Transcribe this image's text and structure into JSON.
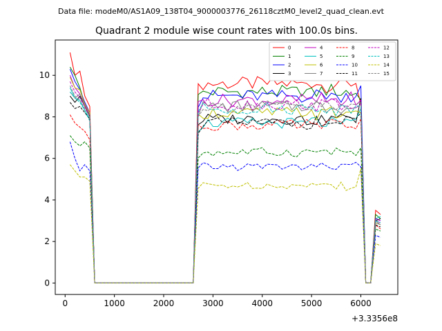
{
  "chart_data": {
    "type": "line",
    "suptitle": "Data file: modeM0/AS1A09_138T04_9000003776_26118cztM0_level2_quad_clean.evt",
    "title": "Quadrant 2 module wise count rates with 100.0s bins.",
    "xlabel": "",
    "ylabel": "",
    "x_offset_label": "+3.3356e8",
    "xlim": [
      -200,
      6750
    ],
    "ylim": [
      -0.55,
      11.7
    ],
    "x_ticks": [
      0,
      1000,
      2000,
      3000,
      4000,
      5000,
      6000
    ],
    "y_ticks": [
      0,
      2,
      4,
      6,
      8,
      10
    ],
    "grid": false,
    "legend": {
      "position": "top-right",
      "columns": 4
    },
    "series": [
      {
        "name": "0",
        "color": "#ff0000",
        "dash": "solid",
        "early": [
          11.1,
          10.0,
          10.2,
          9.0,
          8.5
        ],
        "mid": 9.6,
        "late": [
          8.6,
          0,
          0,
          3.5,
          3.3
        ]
      },
      {
        "name": "1",
        "color": "#008000",
        "dash": "solid",
        "early": [
          10.4,
          10.0,
          9.4,
          8.6,
          8.0
        ],
        "mid": 9.2,
        "late": [
          8.8,
          0,
          0,
          3.3,
          3.1
        ]
      },
      {
        "name": "2",
        "color": "#0000ff",
        "dash": "solid",
        "early": [
          10.3,
          9.7,
          9.3,
          8.7,
          8.2
        ],
        "mid": 9.0,
        "late": [
          9.5,
          0,
          0,
          3.1,
          3.0
        ]
      },
      {
        "name": "3",
        "color": "#000000",
        "dash": "solid",
        "early": [
          9.0,
          8.7,
          9.0,
          8.5,
          8.0
        ],
        "mid": 7.9,
        "late": [
          8.9,
          0,
          0,
          3.0,
          3.1
        ]
      },
      {
        "name": "4",
        "color": "#bf00bf",
        "dash": "solid",
        "early": [
          10.0,
          9.4,
          9.1,
          8.6,
          8.1
        ],
        "mid": 8.8,
        "late": [
          8.8,
          0,
          0,
          3.0,
          2.9
        ]
      },
      {
        "name": "5",
        "color": "#00bfbf",
        "dash": "solid",
        "early": [
          9.4,
          8.9,
          8.8,
          8.3,
          7.9
        ],
        "mid": 7.7,
        "late": [
          8.4,
          0,
          0,
          3.1,
          3.2
        ]
      },
      {
        "name": "6",
        "color": "#bfbf00",
        "dash": "solid",
        "early": [
          9.9,
          9.4,
          9.3,
          8.6,
          8.2
        ],
        "mid": 8.2,
        "late": [
          8.2,
          0,
          0,
          2.9,
          2.8
        ]
      },
      {
        "name": "7",
        "color": "#808080",
        "dash": "solid",
        "early": [
          9.2,
          8.9,
          9.1,
          8.5,
          8.1
        ],
        "mid": 8.5,
        "late": [
          8.6,
          0,
          0,
          3.0,
          2.8
        ]
      },
      {
        "name": "8",
        "color": "#ff0000",
        "dash": "dashed",
        "early": [
          8.1,
          7.7,
          7.5,
          7.3,
          6.9
        ],
        "mid": 7.6,
        "late": [
          7.9,
          0,
          0,
          2.8,
          2.6
        ]
      },
      {
        "name": "9",
        "color": "#008000",
        "dash": "dashed",
        "early": [
          7.1,
          6.8,
          6.6,
          6.8,
          6.5
        ],
        "mid": 6.3,
        "late": [
          6.5,
          0,
          0,
          2.6,
          2.5
        ]
      },
      {
        "name": "10",
        "color": "#0000ff",
        "dash": "dashed",
        "early": [
          6.8,
          6.0,
          5.4,
          5.7,
          5.4
        ],
        "mid": 5.6,
        "late": [
          5.6,
          0,
          0,
          2.3,
          2.2
        ]
      },
      {
        "name": "11",
        "color": "#000000",
        "dash": "dashed",
        "early": [
          8.7,
          8.4,
          8.5,
          8.2,
          7.9
        ],
        "mid": 7.7,
        "late": [
          8.2,
          0,
          0,
          2.8,
          2.7
        ]
      },
      {
        "name": "12",
        "color": "#bf00bf",
        "dash": "dashed",
        "early": [
          9.7,
          9.2,
          8.9,
          8.5,
          8.0
        ],
        "mid": 8.6,
        "late": [
          8.6,
          0,
          0,
          3.1,
          3.0
        ]
      },
      {
        "name": "13",
        "color": "#00bfbf",
        "dash": "dashed",
        "early": [
          9.2,
          8.9,
          8.7,
          8.3,
          7.8
        ],
        "mid": 8.4,
        "late": [
          8.5,
          0,
          0,
          3.0,
          2.9
        ]
      },
      {
        "name": "14",
        "color": "#bfbf00",
        "dash": "dashed",
        "early": [
          5.7,
          5.4,
          5.1,
          5.1,
          4.9
        ],
        "mid": 4.7,
        "late": [
          5.5,
          0,
          0,
          1.9,
          1.8
        ]
      },
      {
        "name": "15",
        "color": "#808080",
        "dash": "dashed",
        "early": [
          9.5,
          9.0,
          8.8,
          8.4,
          8.0
        ],
        "mid": 8.5,
        "late": [
          8.7,
          0,
          0,
          2.9,
          2.8
        ]
      }
    ],
    "x": {
      "early": [
        100,
        200,
        300,
        400,
        500
      ],
      "gap_start": 600,
      "gap_end": 2600,
      "mid_start": 2700,
      "mid_end": 5950,
      "late": [
        6000,
        6100,
        6200,
        6300,
        6400
      ]
    }
  }
}
